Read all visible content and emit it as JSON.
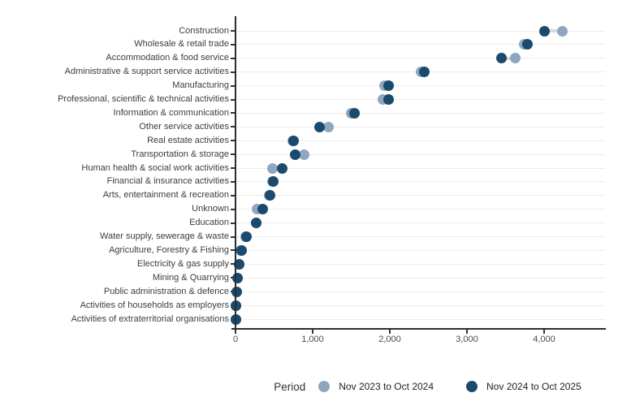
{
  "chart_data": {
    "type": "scatter",
    "variant": "cleveland-dot-plot",
    "title": "",
    "xlabel": "",
    "ylabel": "",
    "xlim": [
      0,
      4790
    ],
    "xticks": [
      0,
      1000,
      2000,
      3000,
      4000
    ],
    "xtick_labels": [
      "0",
      "1,000",
      "2,000",
      "3,000",
      "4,000"
    ],
    "grid": "horizontal category lines only",
    "legend_title": "Period",
    "legend_position": "bottom-center",
    "categories": [
      "Construction",
      "Wholesale & retail trade",
      "Accommodation & food service",
      "Administrative & support service activities",
      "Manufacturing",
      "Professional, scientific & technical activities",
      "Information & communication",
      "Other service activities",
      "Real estate activities",
      "Transportation & storage",
      "Human health & social work activities",
      "Financial & insurance activities",
      "Arts, entertainment & recreation",
      "Unknown",
      "Education",
      "Water supply, sewerage & waste",
      "Agriculture, Forestry & Fishing",
      "Electricity & gas supply",
      "Mining & Quarrying",
      "Public administration & defence",
      "Activities of households as employers",
      "Activities of extraterritorial organisations"
    ],
    "series": [
      {
        "name": "Nov 2023 to Oct 2024",
        "color": "#8fa6c1",
        "values": [
          4240,
          3740,
          3630,
          2400,
          1930,
          1910,
          1500,
          1200,
          740,
          890,
          475,
          480,
          440,
          280,
          265,
          135,
          70,
          45,
          25,
          12,
          5,
          3
        ]
      },
      {
        "name": "Nov 2024 to Oct 2025",
        "color": "#1a4a6e",
        "values": [
          4010,
          3780,
          3450,
          2450,
          1980,
          1980,
          1540,
          1090,
          750,
          770,
          610,
          490,
          450,
          350,
          270,
          140,
          75,
          50,
          30,
          15,
          8,
          5
        ]
      }
    ],
    "connector_color": "#dadada"
  },
  "colors": {
    "axis": "#2e2e2e",
    "gridline": "#ececec",
    "category_label": "#3d3d3d",
    "xtick_label": "#4c4c4c",
    "background": "#ffffff"
  }
}
